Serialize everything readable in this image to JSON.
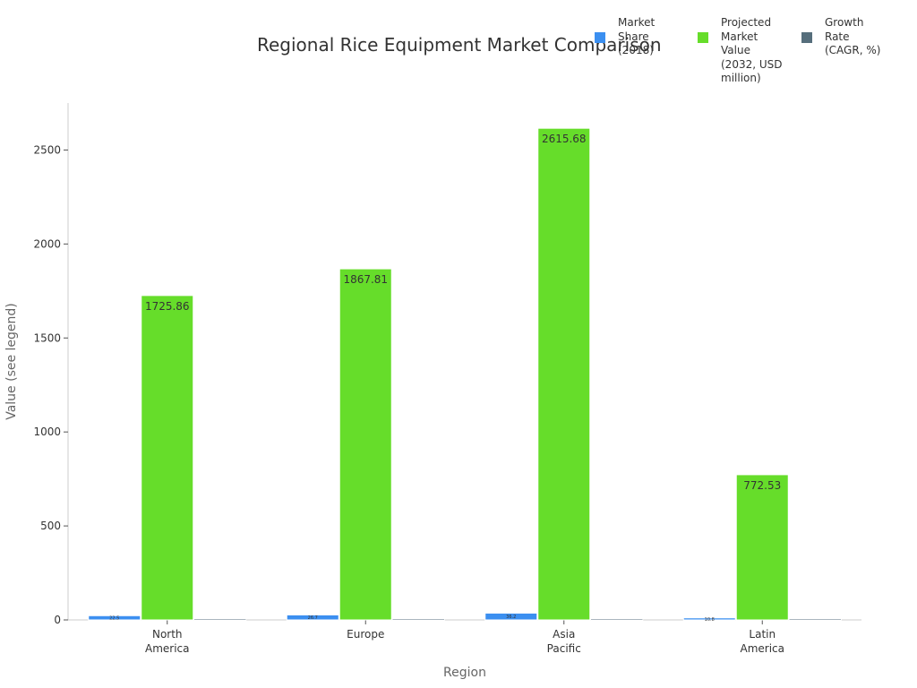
{
  "chart_data": {
    "type": "bar",
    "title": "Regional Rice Equipment Market Comparison",
    "xlabel": "Region",
    "ylabel": "Value (see legend)",
    "categories": [
      "North\nAmerica",
      "Europe",
      "Asia\nPacific",
      "Latin\nAmerica"
    ],
    "ylim": [
      0,
      2750
    ],
    "yticks": [
      0,
      500,
      1000,
      1500,
      2000,
      2500
    ],
    "legend_position": "top-right",
    "series": [
      {
        "name": "Market\nShare\n(2018)",
        "color": "#3b8ff0",
        "values": [
          22.5,
          26.7,
          36.2,
          10.8
        ],
        "labels": [
          "22.5",
          "26.7",
          "36.2",
          "10.8"
        ]
      },
      {
        "name": "Projected\nMarket\nValue\n(2032, USD\nmillion)",
        "color": "#66dd2a",
        "values": [
          1725.86,
          1867.81,
          2615.68,
          772.53
        ],
        "labels": [
          "1725.86",
          "1867.81",
          "2615.68",
          "772.53"
        ]
      },
      {
        "name": "Growth\nRate\n(CAGR, %)",
        "color": "#566e7c",
        "values": [
          5.8,
          4.9,
          6.5,
          5.2
        ],
        "labels": [
          "",
          "",
          "",
          ""
        ]
      }
    ],
    "grid": false
  }
}
